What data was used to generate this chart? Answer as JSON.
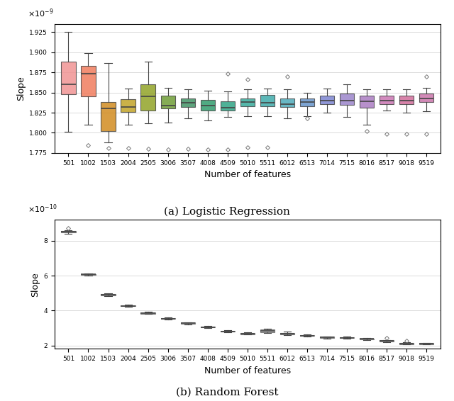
{
  "categories": [
    "501",
    "1002",
    "1503",
    "2004",
    "2505",
    "3006",
    "3507",
    "4008",
    "4509",
    "5010",
    "5511",
    "6012",
    "6513",
    "7014",
    "7515",
    "8016",
    "8517",
    "9018",
    "9519"
  ],
  "lr_colors": [
    "#F09090",
    "#F07858",
    "#D08818",
    "#C0A020",
    "#8EA020",
    "#6A9A30",
    "#3A9060",
    "#2A9868",
    "#28A080",
    "#30A898",
    "#38A8A8",
    "#48A8B8",
    "#6090C8",
    "#7880D0",
    "#9880C8",
    "#A878C0",
    "#C870B0",
    "#D06898",
    "#C870A8"
  ],
  "lr_data": {
    "501": {
      "whislo": 1.801,
      "q1": 1.848,
      "med": 1.86,
      "q3": 1.888,
      "whishi": 1.925,
      "fliers": []
    },
    "1002": {
      "whislo": 1.81,
      "q1": 1.845,
      "med": 1.873,
      "q3": 1.883,
      "whishi": 1.899,
      "fliers": [
        1.785
      ]
    },
    "1503": {
      "whislo": 1.788,
      "q1": 1.802,
      "med": 1.83,
      "q3": 1.838,
      "whishi": 1.887,
      "fliers": [
        1.781
      ]
    },
    "2004": {
      "whislo": 1.81,
      "q1": 1.826,
      "med": 1.832,
      "q3": 1.842,
      "whishi": 1.855,
      "fliers": [
        1.781
      ]
    },
    "2505": {
      "whislo": 1.812,
      "q1": 1.828,
      "med": 1.845,
      "q3": 1.86,
      "whishi": 1.888,
      "fliers": [
        1.78
      ]
    },
    "3006": {
      "whislo": 1.813,
      "q1": 1.83,
      "med": 1.834,
      "q3": 1.846,
      "whishi": 1.856,
      "fliers": [
        1.779
      ]
    },
    "3507": {
      "whislo": 1.818,
      "q1": 1.832,
      "med": 1.837,
      "q3": 1.843,
      "whishi": 1.854,
      "fliers": [
        1.78
      ]
    },
    "4008": {
      "whislo": 1.815,
      "q1": 1.828,
      "med": 1.834,
      "q3": 1.841,
      "whishi": 1.852,
      "fliers": [
        1.779
      ]
    },
    "4509": {
      "whislo": 1.82,
      "q1": 1.828,
      "med": 1.831,
      "q3": 1.839,
      "whishi": 1.851,
      "fliers": [
        1.779,
        1.873
      ]
    },
    "5010": {
      "whislo": 1.821,
      "q1": 1.833,
      "med": 1.838,
      "q3": 1.843,
      "whishi": 1.854,
      "fliers": [
        1.782,
        1.866
      ]
    },
    "5511": {
      "whislo": 1.821,
      "q1": 1.833,
      "med": 1.837,
      "q3": 1.847,
      "whishi": 1.855,
      "fliers": [
        1.782
      ]
    },
    "6012": {
      "whislo": 1.818,
      "q1": 1.832,
      "med": 1.836,
      "q3": 1.843,
      "whishi": 1.854,
      "fliers": [
        1.87
      ]
    },
    "6513": {
      "whislo": 1.821,
      "q1": 1.833,
      "med": 1.838,
      "q3": 1.843,
      "whishi": 1.85,
      "fliers": [
        1.818
      ]
    },
    "7014": {
      "whislo": 1.825,
      "q1": 1.836,
      "med": 1.84,
      "q3": 1.846,
      "whishi": 1.855,
      "fliers": []
    },
    "7515": {
      "whislo": 1.82,
      "q1": 1.835,
      "med": 1.84,
      "q3": 1.849,
      "whishi": 1.86,
      "fliers": []
    },
    "8016": {
      "whislo": 1.81,
      "q1": 1.831,
      "med": 1.839,
      "q3": 1.846,
      "whishi": 1.854,
      "fliers": [
        1.802
      ]
    },
    "8517": {
      "whislo": 1.828,
      "q1": 1.836,
      "med": 1.84,
      "q3": 1.846,
      "whishi": 1.854,
      "fliers": [
        1.799
      ]
    },
    "9018": {
      "whislo": 1.825,
      "q1": 1.836,
      "med": 1.84,
      "q3": 1.846,
      "whishi": 1.854,
      "fliers": [
        1.799
      ]
    },
    "9519": {
      "whislo": 1.827,
      "q1": 1.838,
      "med": 1.843,
      "q3": 1.849,
      "whishi": 1.856,
      "fliers": [
        1.799,
        1.87
      ]
    }
  },
  "rf_data": {
    "501": {
      "whislo": 8.4,
      "q1": 8.47,
      "med": 8.51,
      "q3": 8.55,
      "whishi": 8.6,
      "fliers": [
        8.72
      ]
    },
    "1002": {
      "whislo": 6.0,
      "q1": 6.04,
      "med": 6.07,
      "q3": 6.1,
      "whishi": 6.13,
      "fliers": []
    },
    "1503": {
      "whislo": 4.82,
      "q1": 4.87,
      "med": 4.9,
      "q3": 4.93,
      "whishi": 4.97,
      "fliers": []
    },
    "2004": {
      "whislo": 4.2,
      "q1": 4.24,
      "med": 4.27,
      "q3": 4.3,
      "whishi": 4.33,
      "fliers": []
    },
    "2505": {
      "whislo": 3.8,
      "q1": 3.83,
      "med": 3.86,
      "q3": 3.89,
      "whishi": 3.93,
      "fliers": []
    },
    "3006": {
      "whislo": 3.48,
      "q1": 3.51,
      "med": 3.54,
      "q3": 3.57,
      "whishi": 3.61,
      "fliers": []
    },
    "3507": {
      "whislo": 3.22,
      "q1": 3.25,
      "med": 3.28,
      "q3": 3.31,
      "whishi": 3.34,
      "fliers": []
    },
    "4008": {
      "whislo": 3.0,
      "q1": 3.02,
      "med": 3.05,
      "q3": 3.07,
      "whishi": 3.1,
      "fliers": []
    },
    "4509": {
      "whislo": 2.75,
      "q1": 2.78,
      "med": 2.8,
      "q3": 2.83,
      "whishi": 2.86,
      "fliers": []
    },
    "5010": {
      "whislo": 2.62,
      "q1": 2.65,
      "med": 2.68,
      "q3": 2.71,
      "whishi": 2.74,
      "fliers": []
    },
    "5511": {
      "whislo": 2.72,
      "q1": 2.76,
      "med": 2.82,
      "q3": 2.9,
      "whishi": 2.96,
      "fliers": []
    },
    "6012": {
      "whislo": 2.6,
      "q1": 2.65,
      "med": 2.68,
      "q3": 2.73,
      "whishi": 2.78,
      "fliers": []
    },
    "6513": {
      "whislo": 2.5,
      "q1": 2.53,
      "med": 2.56,
      "q3": 2.59,
      "whishi": 2.62,
      "fliers": []
    },
    "7014": {
      "whislo": 2.4,
      "q1": 2.43,
      "med": 2.46,
      "q3": 2.49,
      "whishi": 2.52,
      "fliers": []
    },
    "7515": {
      "whislo": 2.38,
      "q1": 2.41,
      "med": 2.44,
      "q3": 2.47,
      "whishi": 2.5,
      "fliers": []
    },
    "8016": {
      "whislo": 2.32,
      "q1": 2.35,
      "med": 2.37,
      "q3": 2.4,
      "whishi": 2.43,
      "fliers": []
    },
    "8517": {
      "whislo": 2.2,
      "q1": 2.23,
      "med": 2.26,
      "q3": 2.29,
      "whishi": 2.32,
      "fliers": [
        2.42
      ]
    },
    "9018": {
      "whislo": 2.05,
      "q1": 2.08,
      "med": 2.11,
      "q3": 2.14,
      "whishi": 2.17,
      "fliers": [
        2.28
      ]
    },
    "9519": {
      "whislo": 2.05,
      "q1": 2.07,
      "med": 2.1,
      "q3": 2.13,
      "whishi": 2.16,
      "fliers": []
    }
  },
  "lr_ylim": [
    1.775e-09,
    1.935e-09
  ],
  "lr_yticks": [
    1.775e-09,
    1.8e-09,
    1.825e-09,
    1.85e-09,
    1.875e-09,
    1.9e-09,
    1.925e-09
  ],
  "lr_yticklabels": [
    "1.775",
    "1.800",
    "1.825",
    "1.850",
    "1.875",
    "1.900",
    "1.925"
  ],
  "rf_ylim": [
    1.8e-10,
    9.2e-10
  ],
  "rf_yticks": [
    2e-10,
    4e-10,
    6e-10,
    8e-10
  ],
  "rf_yticklabels": [
    "2",
    "4",
    "6",
    "8"
  ],
  "xlabel": "Number of features",
  "ylabel": "Slope",
  "label_a": "(a) Logistic Regression",
  "label_b": "(b) Random Forest",
  "flier_marker": "D",
  "flier_size": 3,
  "linewidth": 0.8
}
